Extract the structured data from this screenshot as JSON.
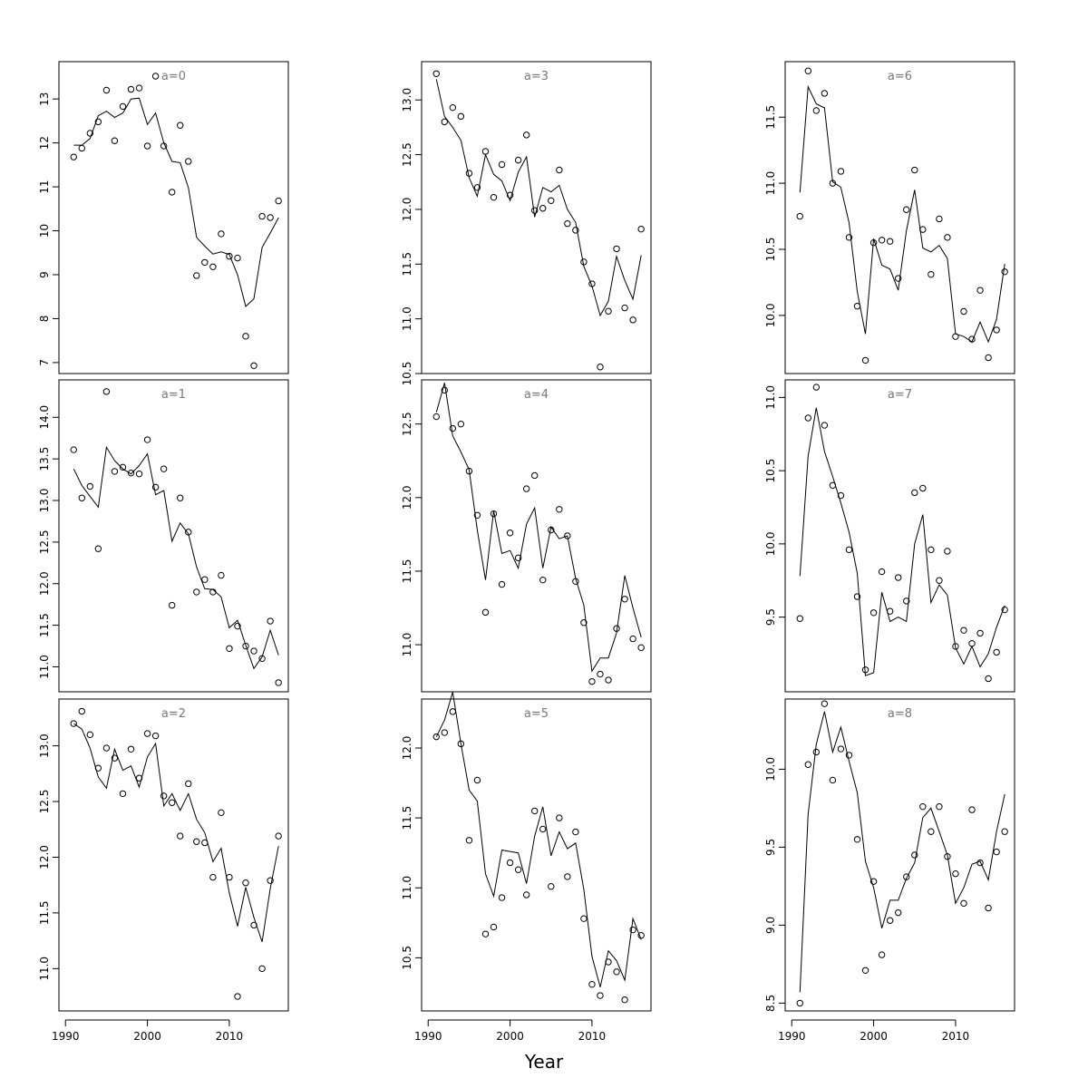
{
  "xlabel": "Year",
  "chart_data": [
    {
      "type": "scatter",
      "title": "a=0",
      "xticks": [
        1990,
        2000,
        2010
      ],
      "yticks": [
        7,
        8,
        9,
        10,
        11,
        12,
        13
      ],
      "ylim": [
        6.75,
        13.85
      ],
      "x": [
        1991,
        1992,
        1993,
        1994,
        1995,
        1996,
        1997,
        1998,
        1999,
        2000,
        2001,
        2002,
        2003,
        2004,
        2005,
        2006,
        2007,
        2008,
        2009,
        2010,
        2011,
        2012,
        2013,
        2014,
        2015,
        2016
      ],
      "observed": [
        11.68,
        11.88,
        12.22,
        12.48,
        13.2,
        12.05,
        12.83,
        13.22,
        13.25,
        11.93,
        13.52,
        11.93,
        10.88,
        12.4,
        11.58,
        8.98,
        9.28,
        9.18,
        9.93,
        9.42,
        9.38,
        7.6,
        6.93,
        10.33,
        10.3,
        10.68
      ],
      "fitted": [
        11.95,
        11.95,
        12.1,
        12.62,
        12.72,
        12.58,
        12.68,
        13.0,
        13.02,
        12.42,
        12.68,
        12.0,
        11.58,
        11.55,
        10.98,
        9.85,
        9.65,
        9.47,
        9.52,
        9.46,
        9.0,
        8.28,
        8.45,
        9.62,
        9.95,
        10.3
      ]
    },
    {
      "type": "scatter",
      "title": "a=1",
      "xticks": [
        1990,
        2000,
        2010
      ],
      "yticks": [
        11.0,
        11.5,
        12.0,
        12.5,
        13.0,
        13.5,
        14.0
      ],
      "ylim": [
        10.7,
        14.45
      ],
      "x": [
        1991,
        1992,
        1993,
        1994,
        1995,
        1996,
        1997,
        1998,
        1999,
        2000,
        2001,
        2002,
        2003,
        2004,
        2005,
        2006,
        2007,
        2008,
        2009,
        2010,
        2011,
        2012,
        2013,
        2014,
        2015,
        2016
      ],
      "observed": [
        13.61,
        13.03,
        13.17,
        12.42,
        14.31,
        13.35,
        13.4,
        13.33,
        13.32,
        13.73,
        13.16,
        13.38,
        11.74,
        13.03,
        12.62,
        11.9,
        12.05,
        11.9,
        12.1,
        11.22,
        11.49,
        11.25,
        11.19,
        11.1,
        11.55,
        10.81
      ],
      "fitted": [
        13.38,
        13.18,
        13.05,
        12.92,
        13.64,
        13.48,
        13.38,
        13.32,
        13.42,
        13.56,
        13.07,
        13.12,
        12.51,
        12.73,
        12.6,
        12.2,
        11.94,
        11.93,
        11.84,
        11.47,
        11.56,
        11.26,
        10.98,
        11.12,
        11.44,
        11.14
      ]
    },
    {
      "type": "scatter",
      "title": "a=2",
      "xticks": [
        1990,
        2000,
        2010
      ],
      "yticks": [
        11.0,
        11.5,
        12.0,
        12.5,
        13.0
      ],
      "ylim": [
        10.62,
        13.42
      ],
      "x": [
        1991,
        1992,
        1993,
        1994,
        1995,
        1996,
        1997,
        1998,
        1999,
        2000,
        2001,
        2002,
        2003,
        2004,
        2005,
        2006,
        2007,
        2008,
        2009,
        2010,
        2011,
        2012,
        2013,
        2014,
        2015,
        2016
      ],
      "observed": [
        13.2,
        13.31,
        13.1,
        12.8,
        12.98,
        12.89,
        12.57,
        12.97,
        12.71,
        13.11,
        13.09,
        12.55,
        12.49,
        12.19,
        12.66,
        12.14,
        12.13,
        11.82,
        12.4,
        11.82,
        10.75,
        11.77,
        11.39,
        11.0,
        11.79,
        12.19
      ],
      "fitted": [
        13.2,
        13.15,
        12.98,
        12.72,
        12.62,
        12.97,
        12.78,
        12.82,
        12.63,
        12.9,
        13.02,
        12.46,
        12.57,
        12.42,
        12.57,
        12.34,
        12.22,
        11.96,
        12.08,
        11.68,
        11.38,
        11.73,
        11.46,
        11.24,
        11.72,
        12.1
      ]
    },
    {
      "type": "scatter",
      "title": "a=3",
      "xticks": [
        1990,
        2000,
        2010
      ],
      "yticks": [
        10.5,
        11.0,
        11.5,
        12.0,
        12.5,
        13.0
      ],
      "ylim": [
        10.5,
        13.35
      ],
      "x": [
        1991,
        1992,
        1993,
        1994,
        1995,
        1996,
        1997,
        1998,
        1999,
        2000,
        2001,
        2002,
        2003,
        2004,
        2005,
        2006,
        2007,
        2008,
        2009,
        2010,
        2011,
        2012,
        2013,
        2014,
        2015,
        2016
      ],
      "observed": [
        13.24,
        12.8,
        12.93,
        12.85,
        12.33,
        12.2,
        12.53,
        12.11,
        12.41,
        12.13,
        12.45,
        12.68,
        11.99,
        12.01,
        12.08,
        12.36,
        11.87,
        11.81,
        11.52,
        11.32,
        10.56,
        11.07,
        11.64,
        11.1,
        10.99,
        11.82
      ],
      "fitted": [
        13.19,
        12.85,
        12.75,
        12.63,
        12.29,
        12.12,
        12.5,
        12.32,
        12.26,
        12.08,
        12.34,
        12.48,
        11.93,
        12.2,
        12.16,
        12.22,
        12.0,
        11.88,
        11.48,
        11.3,
        11.03,
        11.16,
        11.57,
        11.35,
        11.18,
        11.58
      ]
    },
    {
      "type": "scatter",
      "title": "a=4",
      "xticks": [
        1990,
        2000,
        2010
      ],
      "yticks": [
        11.0,
        11.5,
        12.0,
        12.5
      ],
      "ylim": [
        10.68,
        12.8
      ],
      "x": [
        1991,
        1992,
        1993,
        1994,
        1995,
        1996,
        1997,
        1998,
        1999,
        2000,
        2001,
        2002,
        2003,
        2004,
        2005,
        2006,
        2007,
        2008,
        2009,
        2010,
        2011,
        2012,
        2013,
        2014,
        2015,
        2016
      ],
      "observed": [
        12.55,
        12.73,
        12.47,
        12.5,
        12.18,
        11.88,
        11.22,
        11.89,
        11.41,
        11.76,
        11.59,
        12.06,
        12.15,
        11.44,
        11.78,
        11.92,
        11.74,
        11.43,
        11.15,
        10.75,
        10.8,
        10.76,
        11.11,
        11.31,
        11.04,
        10.98
      ],
      "fitted": [
        12.58,
        12.78,
        12.42,
        12.31,
        12.19,
        11.78,
        11.44,
        11.91,
        11.62,
        11.64,
        11.52,
        11.82,
        11.93,
        11.52,
        11.8,
        11.72,
        11.74,
        11.45,
        11.27,
        10.82,
        10.91,
        10.91,
        11.08,
        11.47,
        11.25,
        11.05
      ]
    },
    {
      "type": "scatter",
      "title": "a=5",
      "xticks": [
        1990,
        2000,
        2010
      ],
      "yticks": [
        10.5,
        11.0,
        11.5,
        12.0
      ],
      "ylim": [
        10.12,
        12.35
      ],
      "x": [
        1991,
        1992,
        1993,
        1994,
        1995,
        1996,
        1997,
        1998,
        1999,
        2000,
        2001,
        2002,
        2003,
        2004,
        2005,
        2006,
        2007,
        2008,
        2009,
        2010,
        2011,
        2012,
        2013,
        2014,
        2015,
        2016
      ],
      "observed": [
        12.08,
        12.11,
        12.26,
        12.03,
        11.34,
        11.77,
        10.67,
        10.72,
        10.93,
        11.18,
        11.13,
        10.95,
        11.55,
        11.42,
        11.01,
        11.5,
        11.08,
        11.4,
        10.78,
        10.31,
        10.23,
        10.47,
        10.4,
        10.2,
        10.7,
        10.66
      ],
      "fitted": [
        12.08,
        12.2,
        12.4,
        12.03,
        11.7,
        11.62,
        11.1,
        10.94,
        11.27,
        11.26,
        11.25,
        11.03,
        11.37,
        11.58,
        11.23,
        11.4,
        11.28,
        11.32,
        10.99,
        10.51,
        10.29,
        10.55,
        10.48,
        10.34,
        10.78,
        10.63
      ]
    },
    {
      "type": "scatter",
      "title": "a=6",
      "xticks": [
        1990,
        2000,
        2010
      ],
      "yticks": [
        10.0,
        10.5,
        11.0,
        11.5
      ],
      "ylim": [
        9.56,
        11.92
      ],
      "x": [
        1991,
        1992,
        1993,
        1994,
        1995,
        1996,
        1997,
        1998,
        1999,
        2000,
        2001,
        2002,
        2003,
        2004,
        2005,
        2006,
        2007,
        2008,
        2009,
        2010,
        2011,
        2012,
        2013,
        2014,
        2015,
        2016
      ],
      "observed": [
        10.75,
        11.85,
        11.55,
        11.68,
        11.0,
        11.09,
        10.59,
        10.07,
        9.66,
        10.55,
        10.57,
        10.56,
        10.28,
        10.8,
        11.1,
        10.65,
        10.31,
        10.73,
        10.59,
        9.84,
        10.03,
        9.82,
        10.19,
        9.68,
        9.89,
        10.33
      ],
      "fitted": [
        10.93,
        11.73,
        11.6,
        11.57,
        11.01,
        10.97,
        10.7,
        10.18,
        9.86,
        10.58,
        10.38,
        10.35,
        10.19,
        10.64,
        10.95,
        10.51,
        10.48,
        10.53,
        10.43,
        9.86,
        9.84,
        9.8,
        9.95,
        9.8,
        9.97,
        10.39
      ]
    },
    {
      "type": "scatter",
      "title": "a=7",
      "xticks": [
        1990,
        2000,
        2010
      ],
      "yticks": [
        9.5,
        10.0,
        10.5,
        11.0
      ],
      "ylim": [
        8.99,
        11.12
      ],
      "x": [
        1991,
        1992,
        1993,
        1994,
        1995,
        1996,
        1997,
        1998,
        1999,
        2000,
        2001,
        2002,
        2003,
        2004,
        2005,
        2006,
        2007,
        2008,
        2009,
        2010,
        2011,
        2012,
        2013,
        2014,
        2015,
        2016
      ],
      "observed": [
        9.49,
        10.86,
        11.07,
        10.81,
        10.4,
        10.33,
        9.96,
        9.64,
        9.14,
        9.53,
        9.81,
        9.54,
        9.77,
        9.61,
        10.35,
        10.38,
        9.96,
        9.75,
        9.95,
        9.3,
        9.41,
        9.32,
        9.39,
        9.08,
        9.26,
        9.55
      ],
      "fitted": [
        9.78,
        10.6,
        10.93,
        10.63,
        10.46,
        10.28,
        10.08,
        9.8,
        9.1,
        9.12,
        9.67,
        9.47,
        9.5,
        9.47,
        10.0,
        10.2,
        9.6,
        9.72,
        9.65,
        9.29,
        9.18,
        9.3,
        9.16,
        9.25,
        9.43,
        9.58
      ]
    },
    {
      "type": "scatter",
      "title": "a=8",
      "xticks": [
        1990,
        2000,
        2010
      ],
      "yticks": [
        8.5,
        9.0,
        9.5,
        10.0
      ],
      "ylim": [
        8.45,
        10.45
      ],
      "x": [
        1991,
        1992,
        1993,
        1994,
        1995,
        1996,
        1997,
        1998,
        1999,
        2000,
        2001,
        2002,
        2003,
        2004,
        2005,
        2006,
        2007,
        2008,
        2009,
        2010,
        2011,
        2012,
        2013,
        2014,
        2015,
        2016
      ],
      "observed": [
        8.5,
        10.03,
        10.11,
        10.42,
        9.93,
        10.13,
        10.09,
        9.55,
        8.71,
        9.28,
        8.81,
        9.03,
        9.08,
        9.31,
        9.45,
        9.76,
        9.6,
        9.76,
        9.44,
        9.33,
        9.14,
        9.74,
        9.4,
        9.11,
        9.47,
        9.6
      ],
      "fitted": [
        8.57,
        9.71,
        10.16,
        10.37,
        10.11,
        10.27,
        10.05,
        9.85,
        9.41,
        9.24,
        8.98,
        9.16,
        9.16,
        9.3,
        9.4,
        9.69,
        9.75,
        9.6,
        9.45,
        9.14,
        9.24,
        9.39,
        9.41,
        9.29,
        9.6,
        9.84
      ]
    }
  ]
}
